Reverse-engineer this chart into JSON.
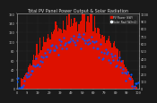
{
  "title": "Total PV Panel Power Output & Solar Radiation",
  "bg_color": "#1a1a1a",
  "plot_bg": "#1a1a1a",
  "bar_color": "#dd1100",
  "dot_color": "#0055ff",
  "grid_color": "#555555",
  "ylim_left": [
    0,
    160
  ],
  "ylim_right": [
    0,
    1000
  ],
  "legend_labels": [
    "PV Power (kW)",
    "Solar Rad (W/m2)"
  ],
  "legend_colors": [
    "#dd1100",
    "#0055ff"
  ],
  "n_bars": 110,
  "title_fontsize": 3.5,
  "label_fontsize": 2.8,
  "tick_fontsize": 2.5
}
